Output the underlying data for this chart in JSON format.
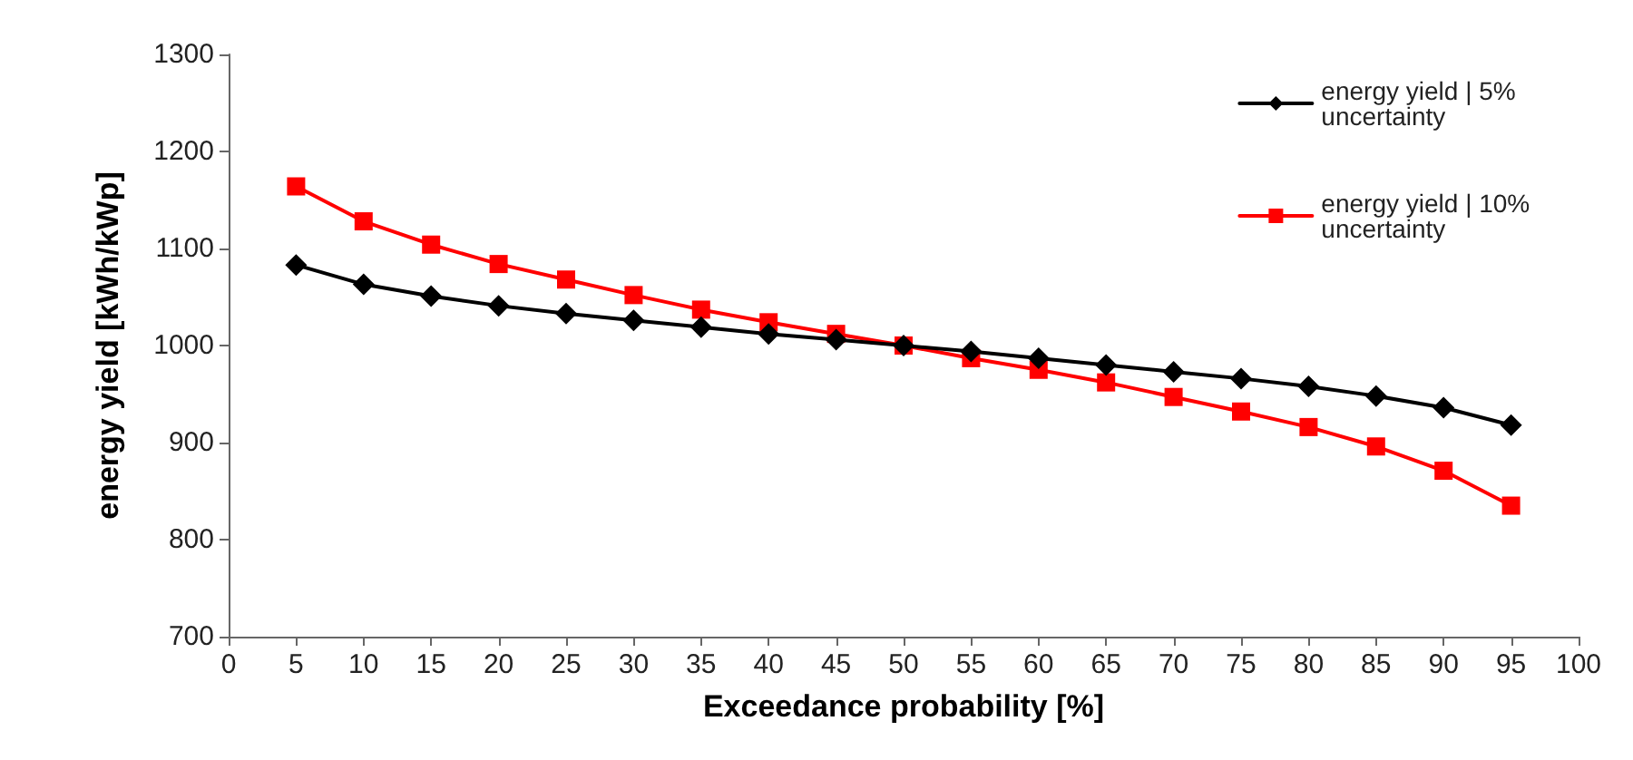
{
  "chart_data": {
    "type": "line",
    "xlabel": "Exceedance probability [%]",
    "ylabel": "energy yield [kWh/kWp]",
    "x": [
      5,
      10,
      15,
      20,
      25,
      30,
      35,
      40,
      45,
      50,
      55,
      60,
      65,
      70,
      75,
      80,
      85,
      90,
      95
    ],
    "series": [
      {
        "name": "energy yield | 5% uncertainty",
        "color": "#000000",
        "marker": "diamond",
        "values": [
          1083,
          1063,
          1051,
          1041,
          1033,
          1026,
          1019,
          1012,
          1006,
          1000,
          994,
          987,
          980,
          973,
          966,
          958,
          948,
          936,
          918
        ]
      },
      {
        "name": "energy yield | 10% uncertainty",
        "color": "#ff0000",
        "marker": "square",
        "values": [
          1164,
          1128,
          1104,
          1084,
          1068,
          1052,
          1037,
          1024,
          1012,
          1000,
          987,
          975,
          962,
          947,
          932,
          916,
          896,
          871,
          835
        ]
      }
    ],
    "xlim": [
      0,
      100
    ],
    "xticks": [
      0,
      5,
      10,
      15,
      20,
      25,
      30,
      35,
      40,
      45,
      50,
      55,
      60,
      65,
      70,
      75,
      80,
      85,
      90,
      95,
      100
    ],
    "ylim": [
      700,
      1300
    ],
    "yticks": [
      700,
      800,
      900,
      1000,
      1100,
      1200,
      1300
    ],
    "grid": false,
    "legend": "top right",
    "line_style": "solid"
  }
}
